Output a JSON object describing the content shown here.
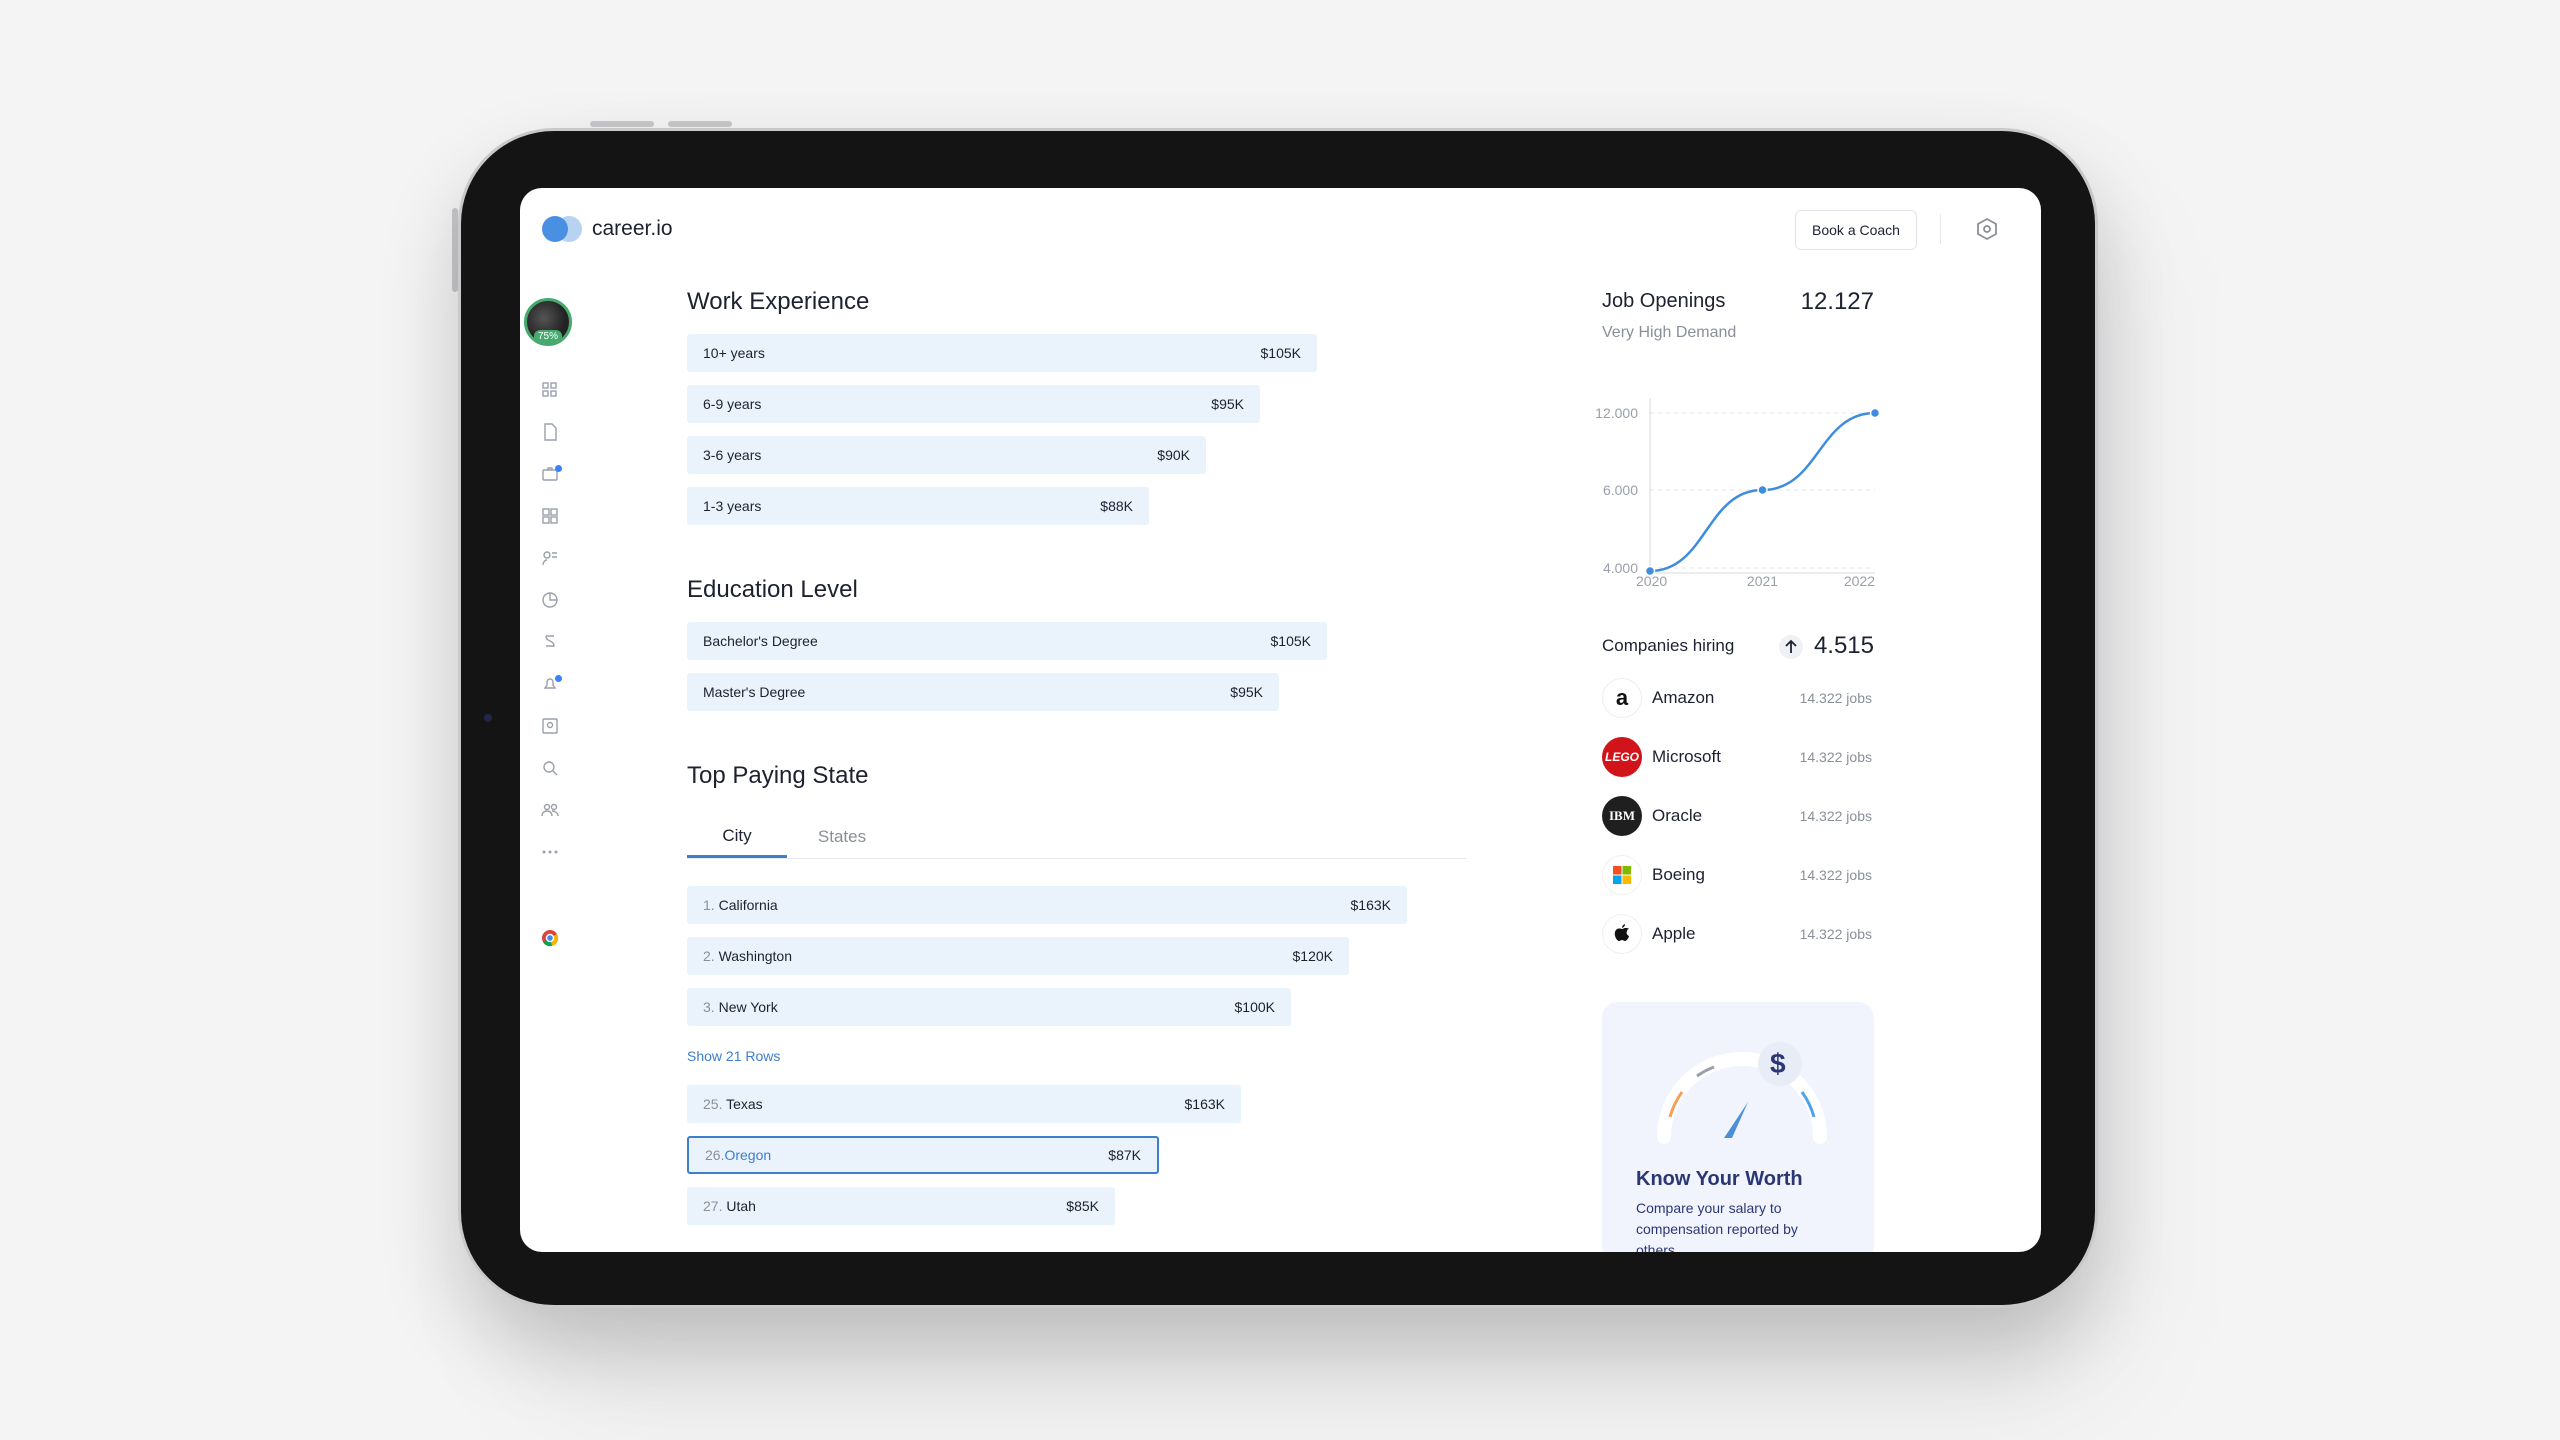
{
  "app": {
    "logo_text": "career.io",
    "book_coach_label": "Book a Coach",
    "avatar_progress": "75%"
  },
  "sidebar": {
    "icons": [
      "dashboard-icon",
      "document-icon",
      "briefcase-icon",
      "grid-icon",
      "coaching-icon",
      "chart-pie-icon",
      "salary-icon",
      "notifications-icon",
      "contacts-icon",
      "search-icon",
      "network-icon",
      "more-icon",
      "chrome-icon"
    ]
  },
  "work_experience": {
    "title": "Work Experience",
    "rows": [
      {
        "label": "10+ years",
        "value": "$105K"
      },
      {
        "label": "6-9 years",
        "value": "$95K"
      },
      {
        "label": "3-6 years",
        "value": "$90K"
      },
      {
        "label": "1-3 years",
        "value": "$88K"
      }
    ]
  },
  "education": {
    "title": "Education Level",
    "rows": [
      {
        "label": "Bachelor's Degree",
        "value": "$105K"
      },
      {
        "label": "Master's Degree",
        "value": "$95K"
      }
    ]
  },
  "top_paying": {
    "title": "Top Paying State",
    "tabs": [
      "City",
      "States"
    ],
    "rows_top": [
      {
        "rank": "1.",
        "label": "California",
        "value": "$163K"
      },
      {
        "rank": "2.",
        "label": "Washington",
        "value": "$120K"
      },
      {
        "rank": "3.",
        "label": "New York",
        "value": "$100K"
      }
    ],
    "show_rows_label": "Show 21 Rows",
    "rows_bottom": [
      {
        "rank": "25.",
        "label": "Texas",
        "value": "$163K"
      },
      {
        "rank": "26.",
        "label": "Oregon",
        "value": "$87K"
      },
      {
        "rank": "27.",
        "label": "Utah",
        "value": "$85K"
      }
    ]
  },
  "job_openings": {
    "title": "Job Openings",
    "count": "12.127",
    "subtitle": "Very High Demand"
  },
  "chart_data": {
    "type": "line",
    "x": [
      2020,
      2021,
      2022
    ],
    "x_ticks": [
      "2020",
      "2021",
      "2022"
    ],
    "y_ticks": [
      "12.000",
      "6.000",
      "4.000"
    ],
    "values": [
      4000,
      6000,
      12000
    ],
    "color": "#3d8ce0"
  },
  "companies": {
    "title": "Companies hiring",
    "count": "4.515",
    "items": [
      {
        "name": "Amazon",
        "jobs": "14.322 jobs",
        "logo_text": "a",
        "logo": "amazon-logo-icon"
      },
      {
        "name": "Microsoft",
        "jobs": "14.322 jobs",
        "logo_text": "LEGO",
        "logo": "lego-logo-icon"
      },
      {
        "name": "Oracle",
        "jobs": "14.322 jobs",
        "logo_text": "IBM",
        "logo": "ibm-logo-icon"
      },
      {
        "name": "Boeing",
        "jobs": "14.322 jobs",
        "logo_text": "",
        "logo": "windows-logo-icon"
      },
      {
        "name": "Apple",
        "jobs": "14.322 jobs",
        "logo_text": "",
        "logo": "apple-logo-icon"
      }
    ]
  },
  "worth": {
    "title": "Know Your Worth",
    "description": "Compare your salary to compensation reported by others",
    "symbol": "$"
  }
}
